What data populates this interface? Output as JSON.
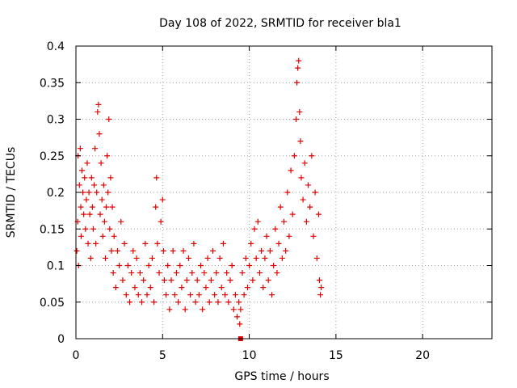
{
  "chart_data": {
    "type": "scatter",
    "title": "Day 108 of 2022, SRMTID for receiver bla1",
    "xlabel": "GPS time / hours",
    "ylabel": "SRMTID / TECUs",
    "xlim": [
      0,
      24
    ],
    "ylim": [
      0,
      0.4
    ],
    "xticks": [
      0,
      5,
      10,
      15,
      20
    ],
    "xtick_labels": [
      "0",
      "5",
      "10",
      "15",
      "20"
    ],
    "yticks": [
      0,
      0.05,
      0.1,
      0.15,
      0.2,
      0.25,
      0.3,
      0.35,
      0.4
    ],
    "ytick_labels": [
      "0",
      "0.05",
      "0.1",
      "0.15",
      "0.2",
      "0.25",
      "0.3",
      "0.35",
      "0.4"
    ],
    "grid": true,
    "marker": "+",
    "color": "#e00000",
    "series": [
      {
        "name": "SRMTID",
        "points": [
          [
            0.05,
            0.12
          ],
          [
            0.1,
            0.16
          ],
          [
            0.12,
            0.25
          ],
          [
            0.15,
            0.1
          ],
          [
            0.2,
            0.21
          ],
          [
            0.25,
            0.26
          ],
          [
            0.28,
            0.18
          ],
          [
            0.3,
            0.14
          ],
          [
            0.35,
            0.23
          ],
          [
            0.4,
            0.2
          ],
          [
            0.45,
            0.17
          ],
          [
            0.5,
            0.22
          ],
          [
            0.55,
            0.15
          ],
          [
            0.6,
            0.19
          ],
          [
            0.65,
            0.24
          ],
          [
            0.7,
            0.13
          ],
          [
            0.75,
            0.2
          ],
          [
            0.8,
            0.17
          ],
          [
            0.85,
            0.11
          ],
          [
            0.9,
            0.22
          ],
          [
            0.95,
            0.18
          ],
          [
            1.0,
            0.15
          ],
          [
            1.05,
            0.21
          ],
          [
            1.1,
            0.26
          ],
          [
            1.15,
            0.13
          ],
          [
            1.2,
            0.2
          ],
          [
            1.25,
            0.31
          ],
          [
            1.3,
            0.32
          ],
          [
            1.35,
            0.28
          ],
          [
            1.4,
            0.17
          ],
          [
            1.45,
            0.24
          ],
          [
            1.5,
            0.19
          ],
          [
            1.55,
            0.14
          ],
          [
            1.6,
            0.21
          ],
          [
            1.65,
            0.16
          ],
          [
            1.7,
            0.11
          ],
          [
            1.75,
            0.18
          ],
          [
            1.8,
            0.25
          ],
          [
            1.85,
            0.2
          ],
          [
            1.9,
            0.3
          ],
          [
            1.95,
            0.15
          ],
          [
            2.0,
            0.22
          ],
          [
            2.05,
            0.12
          ],
          [
            2.1,
            0.18
          ],
          [
            2.15,
            0.09
          ],
          [
            2.2,
            0.14
          ],
          [
            2.3,
            0.07
          ],
          [
            2.4,
            0.12
          ],
          [
            2.5,
            0.1
          ],
          [
            2.6,
            0.16
          ],
          [
            2.7,
            0.08
          ],
          [
            2.8,
            0.13
          ],
          [
            2.9,
            0.06
          ],
          [
            3.0,
            0.1
          ],
          [
            3.1,
            0.05
          ],
          [
            3.2,
            0.09
          ],
          [
            3.3,
            0.12
          ],
          [
            3.4,
            0.07
          ],
          [
            3.5,
            0.11
          ],
          [
            3.6,
            0.06
          ],
          [
            3.7,
            0.09
          ],
          [
            3.8,
            0.05
          ],
          [
            3.9,
            0.08
          ],
          [
            4.0,
            0.13
          ],
          [
            4.1,
            0.06
          ],
          [
            4.2,
            0.1
          ],
          [
            4.3,
            0.07
          ],
          [
            4.4,
            0.11
          ],
          [
            4.5,
            0.05
          ],
          [
            4.6,
            0.18
          ],
          [
            4.65,
            0.22
          ],
          [
            4.7,
            0.13
          ],
          [
            4.8,
            0.09
          ],
          [
            4.9,
            0.16
          ],
          [
            5.0,
            0.19
          ],
          [
            5.05,
            0.12
          ],
          [
            5.1,
            0.08
          ],
          [
            5.2,
            0.06
          ],
          [
            5.3,
            0.1
          ],
          [
            5.4,
            0.04
          ],
          [
            5.5,
            0.08
          ],
          [
            5.6,
            0.12
          ],
          [
            5.7,
            0.06
          ],
          [
            5.8,
            0.09
          ],
          [
            5.9,
            0.05
          ],
          [
            6.0,
            0.1
          ],
          [
            6.1,
            0.07
          ],
          [
            6.2,
            0.12
          ],
          [
            6.3,
            0.04
          ],
          [
            6.4,
            0.08
          ],
          [
            6.5,
            0.11
          ],
          [
            6.6,
            0.06
          ],
          [
            6.7,
            0.09
          ],
          [
            6.8,
            0.13
          ],
          [
            6.9,
            0.05
          ],
          [
            7.0,
            0.08
          ],
          [
            7.1,
            0.06
          ],
          [
            7.2,
            0.1
          ],
          [
            7.3,
            0.04
          ],
          [
            7.4,
            0.09
          ],
          [
            7.5,
            0.07
          ],
          [
            7.6,
            0.11
          ],
          [
            7.7,
            0.05
          ],
          [
            7.8,
            0.08
          ],
          [
            7.9,
            0.12
          ],
          [
            8.0,
            0.06
          ],
          [
            8.1,
            0.09
          ],
          [
            8.2,
            0.05
          ],
          [
            8.3,
            0.11
          ],
          [
            8.4,
            0.07
          ],
          [
            8.5,
            0.13
          ],
          [
            8.6,
            0.06
          ],
          [
            8.7,
            0.09
          ],
          [
            8.8,
            0.05
          ],
          [
            8.9,
            0.08
          ],
          [
            9.0,
            0.1
          ],
          [
            9.1,
            0.04
          ],
          [
            9.2,
            0.06
          ],
          [
            9.3,
            0.03
          ],
          [
            9.4,
            0.05
          ],
          [
            9.45,
            0.02
          ],
          [
            9.5,
            0.04
          ],
          [
            9.6,
            0.09
          ],
          [
            9.7,
            0.06
          ],
          [
            9.8,
            0.11
          ],
          [
            9.9,
            0.07
          ],
          [
            10.0,
            0.1
          ],
          [
            10.1,
            0.13
          ],
          [
            10.2,
            0.08
          ],
          [
            10.3,
            0.15
          ],
          [
            10.4,
            0.11
          ],
          [
            10.5,
            0.16
          ],
          [
            10.6,
            0.09
          ],
          [
            10.7,
            0.12
          ],
          [
            10.8,
            0.07
          ],
          [
            10.9,
            0.11
          ],
          [
            11.0,
            0.14
          ],
          [
            11.1,
            0.08
          ],
          [
            11.2,
            0.12
          ],
          [
            11.3,
            0.06
          ],
          [
            11.4,
            0.1
          ],
          [
            11.5,
            0.15
          ],
          [
            11.6,
            0.09
          ],
          [
            11.7,
            0.13
          ],
          [
            11.8,
            0.18
          ],
          [
            11.9,
            0.11
          ],
          [
            12.0,
            0.16
          ],
          [
            12.1,
            0.12
          ],
          [
            12.2,
            0.2
          ],
          [
            12.3,
            0.14
          ],
          [
            12.4,
            0.23
          ],
          [
            12.5,
            0.17
          ],
          [
            12.6,
            0.25
          ],
          [
            12.7,
            0.3
          ],
          [
            12.75,
            0.35
          ],
          [
            12.8,
            0.37
          ],
          [
            12.85,
            0.38
          ],
          [
            12.9,
            0.31
          ],
          [
            12.95,
            0.27
          ],
          [
            13.0,
            0.22
          ],
          [
            13.1,
            0.19
          ],
          [
            13.2,
            0.24
          ],
          [
            13.3,
            0.16
          ],
          [
            13.4,
            0.21
          ],
          [
            13.5,
            0.18
          ],
          [
            13.6,
            0.25
          ],
          [
            13.7,
            0.14
          ],
          [
            13.8,
            0.2
          ],
          [
            13.9,
            0.11
          ],
          [
            14.0,
            0.17
          ],
          [
            14.05,
            0.08
          ],
          [
            14.1,
            0.06
          ],
          [
            14.15,
            0.07
          ]
        ]
      }
    ],
    "highlight_marker": {
      "x": 9.5,
      "y": 0
    }
  }
}
